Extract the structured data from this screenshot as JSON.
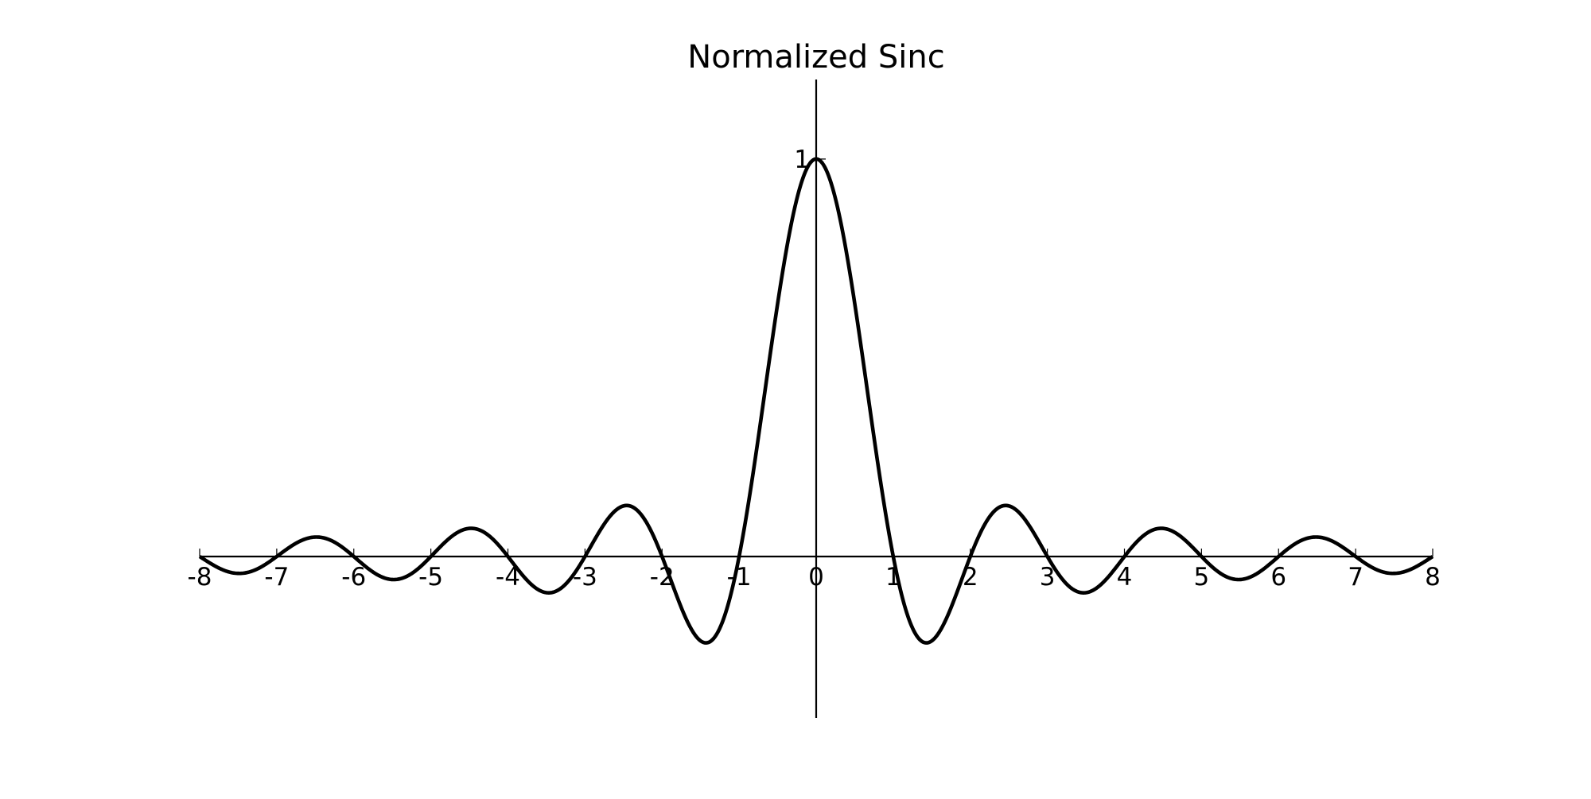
{
  "chart_data": {
    "type": "line",
    "title": "Normalized Sinc",
    "xlabel": "",
    "ylabel": "",
    "xlim": [
      -8,
      8
    ],
    "ylim": [
      -0.4,
      1.2
    ],
    "x_ticks": [
      -8,
      -7,
      -6,
      -5,
      -4,
      -3,
      -2,
      -1,
      0,
      1,
      2,
      3,
      4,
      5,
      6,
      7,
      8
    ],
    "x_tick_labels": [
      "-8",
      "-7",
      "-6",
      "-5",
      "-4",
      "-3",
      "-2",
      "-1",
      "0",
      "1",
      "2",
      "3",
      "4",
      "5",
      "6",
      "7",
      "8"
    ],
    "y_ticks": [
      1
    ],
    "y_tick_labels": [
      "1"
    ],
    "grid": false,
    "series": [
      {
        "function": "sin(pi*x)/(pi*x)",
        "x": [
          -8,
          -7.5,
          -7,
          -6.5,
          -6,
          -5.5,
          -5,
          -4.5,
          -4,
          -3.5,
          -3,
          -2.5,
          -2,
          -1.5,
          -1,
          -0.5,
          0,
          0.5,
          1,
          1.5,
          2,
          2.5,
          3,
          3.5,
          4,
          4.5,
          5,
          5.5,
          6,
          6.5,
          7,
          7.5,
          8
        ],
        "y": [
          0,
          -0.042,
          0,
          0.049,
          0,
          -0.058,
          0,
          0.071,
          0,
          -0.091,
          0,
          0.127,
          0,
          -0.212,
          0,
          0.637,
          1,
          0.637,
          0,
          -0.212,
          0,
          0.127,
          0,
          -0.091,
          0,
          0.071,
          0,
          -0.058,
          0,
          0.049,
          0,
          -0.042,
          0
        ],
        "color": "#000000"
      }
    ]
  }
}
